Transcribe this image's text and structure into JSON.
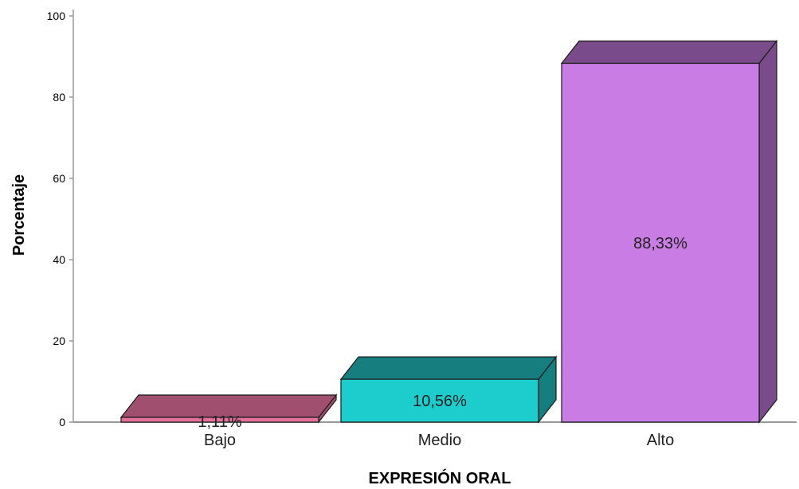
{
  "chart_data": {
    "type": "bar",
    "style": "3d",
    "categories": [
      "Bajo",
      "Medio",
      "Alto"
    ],
    "values": [
      1.11,
      10.56,
      88.33
    ],
    "data_labels": [
      "1,11%",
      "10,56%",
      "88,33%"
    ],
    "colors": {
      "front": [
        "#E4709A",
        "#1DCDCD",
        "#C97CE4"
      ],
      "top": [
        "#A0506E",
        "#167E7E",
        "#7A4B8A"
      ],
      "side": [
        "#A0506E",
        "#167E7E",
        "#7A4B8A"
      ]
    },
    "xlabel": "EXPRESIÓN ORAL",
    "ylabel": "Porcentaje",
    "ylim": [
      0,
      100
    ],
    "yticks": [
      0,
      20,
      40,
      60,
      80,
      100
    ],
    "grid": false,
    "legend": "none"
  }
}
